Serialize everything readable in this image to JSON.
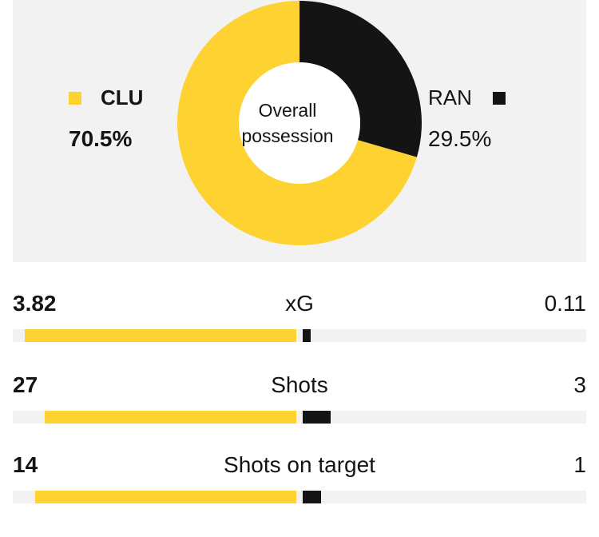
{
  "chart_data": [
    {
      "type": "pie",
      "title": "Overall possession",
      "categories": [
        "CLU",
        "RAN"
      ],
      "values": [
        70.5,
        29.5
      ],
      "value_labels": [
        "70.5%",
        "29.5%"
      ],
      "colors": [
        "#fdd231",
        "#141414"
      ],
      "style": "donut"
    },
    {
      "type": "bar",
      "categories": [
        "xG",
        "Shots",
        "Shots on target"
      ],
      "series": [
        {
          "name": "CLU",
          "values": [
            3.82,
            27,
            14
          ],
          "labels": [
            "3.82",
            "27",
            "14"
          ]
        },
        {
          "name": "RAN",
          "values": [
            0.11,
            3,
            1
          ],
          "labels": [
            "0.11",
            "3",
            "1"
          ]
        }
      ],
      "colors": [
        "#fdd231",
        "#141414"
      ],
      "style": "diverging"
    }
  ],
  "colors": {
    "panel_background": "#f2f2f2",
    "donut_hole": "#ffffff"
  }
}
